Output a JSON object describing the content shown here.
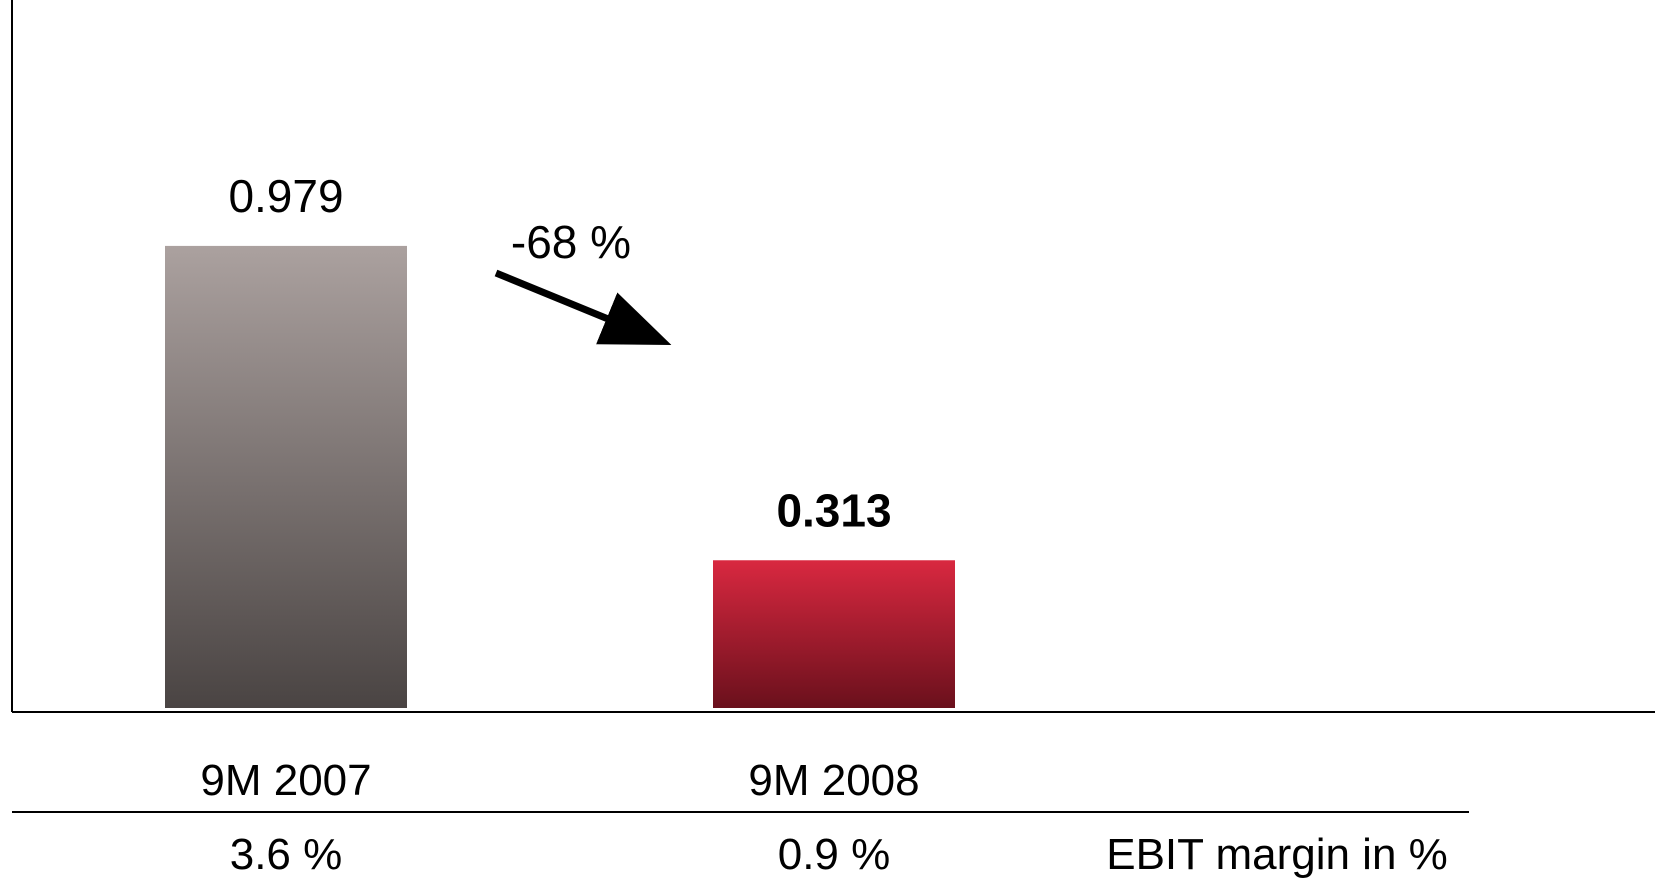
{
  "chart_data": {
    "type": "bar",
    "categories": [
      "9M 2007",
      "9M 2008"
    ],
    "values": [
      0.979,
      0.313
    ],
    "value_labels": [
      "0.979",
      "0.313"
    ],
    "value_label_bold": [
      false,
      true
    ],
    "ylim": [
      0,
      1.5
    ],
    "grid": false,
    "series_colors": [
      {
        "top": "#ABA19F",
        "bottom": "#4A4443"
      },
      {
        "top": "#D92840",
        "bottom": "#6A101C"
      }
    ],
    "change_annotation": "-68 %",
    "secondary_row": {
      "label": "EBIT margin in %",
      "values": [
        "3.6 %",
        "0.9 %"
      ]
    }
  }
}
